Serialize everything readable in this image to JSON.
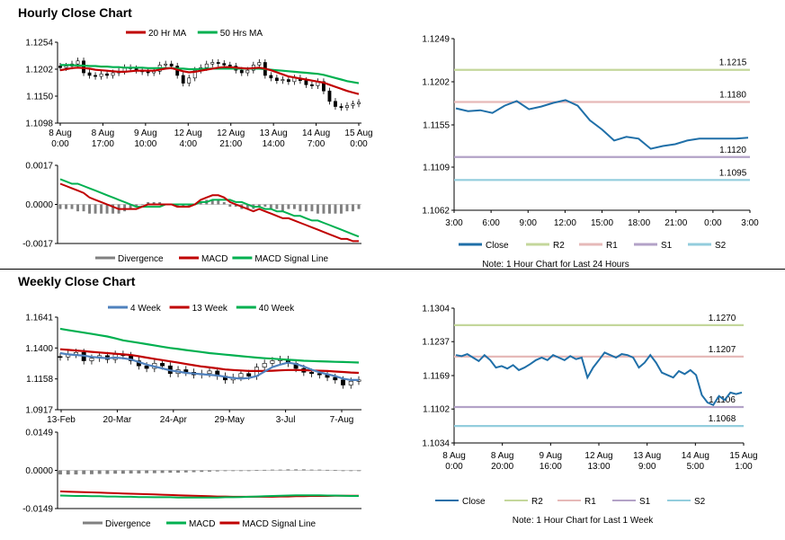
{
  "titles": {
    "hourly": "Hourly Close Chart",
    "weekly": "Weekly Close Chart"
  },
  "chart_data": [
    {
      "id": "hourly_price",
      "type": "candlestick",
      "legend": [
        {
          "label": "20 Hr MA",
          "color": "#c00000"
        },
        {
          "label": "50 Hrs MA",
          "color": "#00b050"
        }
      ],
      "y_ticks": [
        "1.1254",
        "1.1202",
        "1.1150",
        "1.1098"
      ],
      "ylim": [
        1.1098,
        1.1254
      ],
      "x_ticks": [
        [
          "8 Aug",
          "0:00"
        ],
        [
          "8 Aug",
          "17:00"
        ],
        [
          "9 Aug",
          "10:00"
        ],
        [
          "12 Aug",
          "4:00"
        ],
        [
          "12 Aug",
          "21:00"
        ],
        [
          "13 Aug",
          "14:00"
        ],
        [
          "14 Aug",
          "7:00"
        ],
        [
          "15 Aug",
          "0:00"
        ]
      ],
      "close": [
        1.1205,
        1.1208,
        1.1212,
        1.1218,
        1.1195,
        1.119,
        1.1188,
        1.1193,
        1.119,
        1.1195,
        1.1198,
        1.1205,
        1.1203,
        1.12,
        1.1197,
        1.1195,
        1.1198,
        1.121,
        1.1212,
        1.1208,
        1.119,
        1.1175,
        1.1185,
        1.12,
        1.1205,
        1.1212,
        1.1215,
        1.1213,
        1.121,
        1.1208,
        1.12,
        1.1195,
        1.12,
        1.121,
        1.1215,
        1.119,
        1.1185,
        1.118,
        1.1182,
        1.1178,
        1.1185,
        1.118,
        1.1172,
        1.117,
        1.1178,
        1.116,
        1.114,
        1.113,
        1.1128,
        1.1132,
        1.1135,
        1.1138
      ],
      "ma20": [
        1.12,
        1.1202,
        1.1204,
        1.1205,
        1.1204,
        1.1203,
        1.1201,
        1.12,
        1.1199,
        1.1198,
        1.1197,
        1.1197,
        1.1198,
        1.1199,
        1.1199,
        1.1199,
        1.1199,
        1.1201,
        1.1203,
        1.1204,
        1.1201,
        1.1198,
        1.1196,
        1.1197,
        1.1199,
        1.1201,
        1.1203,
        1.1205,
        1.1206,
        1.1206,
        1.1205,
        1.1204,
        1.1203,
        1.1204,
        1.1205,
        1.1203,
        1.12,
        1.1196,
        1.1192,
        1.1188,
        1.1186,
        1.1184,
        1.1182,
        1.118,
        1.1178,
        1.1176,
        1.1172,
        1.1168,
        1.1164,
        1.116,
        1.1157,
        1.1154
      ],
      "ma50": [
        1.121,
        1.121,
        1.121,
        1.1209,
        1.1209,
        1.1208,
        1.1208,
        1.1207,
        1.1207,
        1.1206,
        1.1206,
        1.1205,
        1.1205,
        1.1205,
        1.1205,
        1.1204,
        1.1204,
        1.1204,
        1.1204,
        1.1204,
        1.1203,
        1.1203,
        1.1202,
        1.1202,
        1.1202,
        1.1203,
        1.1203,
        1.1203,
        1.1203,
        1.1203,
        1.1203,
        1.1203,
        1.1203,
        1.1203,
        1.1203,
        1.1202,
        1.1201,
        1.12,
        1.1199,
        1.1198,
        1.1197,
        1.1196,
        1.1195,
        1.1194,
        1.1193,
        1.1191,
        1.1188,
        1.1185,
        1.1182,
        1.1179,
        1.1177,
        1.1175
      ]
    },
    {
      "id": "hourly_macd",
      "type": "macd",
      "y_ticks": [
        "0.0017",
        "0.0000",
        "-0.0017"
      ],
      "ylim": [
        -0.0017,
        0.0017
      ],
      "legend": [
        {
          "label": "Divergence",
          "color": "#808080"
        },
        {
          "label": "MACD",
          "color": "#c00000"
        },
        {
          "label": "MACD Signal Line",
          "color": "#00b050"
        }
      ],
      "macd": [
        0.0009,
        0.0008,
        0.0007,
        0.0006,
        0.0005,
        0.0003,
        0.0002,
        0.0001,
        0.0,
        -0.0001,
        -0.0002,
        -0.0002,
        -0.0002,
        -0.0002,
        -0.0001,
        0.0,
        0.0,
        0.0,
        0.0,
        0.0,
        -0.0001,
        -0.0001,
        -0.0001,
        0.0,
        0.0002,
        0.0003,
        0.0004,
        0.0004,
        0.0003,
        0.0001,
        0.0,
        -0.0001,
        -0.0002,
        -0.0003,
        -0.0002,
        -0.0003,
        -0.0004,
        -0.0005,
        -0.0006,
        -0.0006,
        -0.0007,
        -0.0008,
        -0.0009,
        -0.001,
        -0.0011,
        -0.0012,
        -0.0013,
        -0.0014,
        -0.0015,
        -0.0015,
        -0.0016,
        -0.0016
      ],
      "signal": [
        0.0011,
        0.001,
        0.0009,
        0.0009,
        0.0008,
        0.0007,
        0.0006,
        0.0005,
        0.0004,
        0.0003,
        0.0002,
        0.0001,
        0.0,
        -0.0001,
        -0.0001,
        -0.0001,
        -0.0001,
        -0.0001,
        0.0,
        0.0,
        0.0,
        0.0,
        0.0,
        0.0,
        0.0001,
        0.0001,
        0.0002,
        0.0002,
        0.0002,
        0.0002,
        0.0001,
        0.0001,
        0.0,
        -0.0001,
        -0.0001,
        -0.0002,
        -0.0002,
        -0.0003,
        -0.0003,
        -0.0004,
        -0.0005,
        -0.0005,
        -0.0006,
        -0.0007,
        -0.0007,
        -0.0008,
        -0.0009,
        -0.001,
        -0.0011,
        -0.0012,
        -0.0013,
        -0.0014
      ]
    },
    {
      "id": "hourly_24h",
      "type": "line",
      "y_ticks": [
        "1.1249",
        "1.1202",
        "1.1155",
        "1.1109",
        "1.1062"
      ],
      "ylim": [
        1.1062,
        1.1249
      ],
      "x_ticks": [
        "3:00",
        "6:00",
        "9:00",
        "12:00",
        "15:00",
        "18:00",
        "21:00",
        "0:00",
        "3:00"
      ],
      "close": [
        1.1173,
        1.117,
        1.1171,
        1.1168,
        1.1176,
        1.1181,
        1.1172,
        1.1175,
        1.1179,
        1.1182,
        1.1176,
        1.116,
        1.115,
        1.1138,
        1.1142,
        1.114,
        1.1129,
        1.1132,
        1.1134,
        1.1138,
        1.114,
        1.114,
        1.114,
        1.114,
        1.1141
      ],
      "levels": [
        {
          "name": "R2",
          "value": 1.1215,
          "label": "1.1215",
          "color": "#c4d79b"
        },
        {
          "name": "R1",
          "value": 1.118,
          "label": "1.1180",
          "color": "#e6b9b8"
        },
        {
          "name": "S1",
          "value": 1.112,
          "label": "1.1120",
          "color": "#b3a2c7"
        },
        {
          "name": "S2",
          "value": 1.1095,
          "label": "1.1095",
          "color": "#93cddd"
        }
      ],
      "legend": [
        {
          "label": "Close",
          "color": "#1f6fa8"
        },
        {
          "label": "R2",
          "color": "#c4d79b"
        },
        {
          "label": "R1",
          "color": "#e6b9b8"
        },
        {
          "label": "S1",
          "color": "#b3a2c7"
        },
        {
          "label": "S2",
          "color": "#93cddd"
        }
      ],
      "note": "Note: 1 Hour Chart for Last 24 Hours"
    },
    {
      "id": "weekly_price",
      "type": "candlestick",
      "legend": [
        {
          "label": "4 Week",
          "color": "#4f81bd"
        },
        {
          "label": "13 Week",
          "color": "#c00000"
        },
        {
          "label": "40 Week",
          "color": "#00b050"
        }
      ],
      "y_ticks": [
        "1.1641",
        "1.1400",
        "1.1158",
        "1.0917"
      ],
      "ylim": [
        1.0917,
        1.1641
      ],
      "x_ticks": [
        "13-Feb",
        "20-Mar",
        "24-Apr",
        "29-May",
        "3-Jul",
        "7-Aug"
      ],
      "close": [
        1.133,
        1.135,
        1.1365,
        1.13,
        1.132,
        1.134,
        1.131,
        1.135,
        1.134,
        1.13,
        1.126,
        1.124,
        1.128,
        1.126,
        1.12,
        1.123,
        1.121,
        1.119,
        1.12,
        1.122,
        1.118,
        1.115,
        1.117,
        1.12,
        1.118,
        1.125,
        1.128,
        1.13,
        1.131,
        1.128,
        1.124,
        1.121,
        1.12,
        1.119,
        1.117,
        1.115,
        1.111,
        1.114,
        1.115
      ],
      "ma4": [
        1.136,
        1.135,
        1.1345,
        1.134,
        1.133,
        1.1325,
        1.132,
        1.1325,
        1.132,
        1.131,
        1.129,
        1.127,
        1.1255,
        1.124,
        1.1225,
        1.1215,
        1.1205,
        1.12,
        1.1195,
        1.119,
        1.1185,
        1.1175,
        1.1165,
        1.116,
        1.1165,
        1.118,
        1.1215,
        1.125,
        1.127,
        1.1285,
        1.1275,
        1.1255,
        1.123,
        1.121,
        1.1195,
        1.118,
        1.116,
        1.115,
        1.115
      ],
      "ma13": [
        1.139,
        1.1385,
        1.138,
        1.1375,
        1.137,
        1.1365,
        1.136,
        1.1355,
        1.135,
        1.1345,
        1.1335,
        1.1325,
        1.1315,
        1.1305,
        1.1295,
        1.1285,
        1.1275,
        1.1265,
        1.1255,
        1.1248,
        1.124,
        1.1232,
        1.1228,
        1.1224,
        1.122,
        1.122,
        1.122,
        1.1222,
        1.1225,
        1.1228,
        1.1228,
        1.1226,
        1.1224,
        1.1222,
        1.122,
        1.1216,
        1.1212,
        1.1208,
        1.1205
      ],
      "ma40": [
        1.155,
        1.154,
        1.153,
        1.152,
        1.151,
        1.15,
        1.149,
        1.1475,
        1.146,
        1.145,
        1.144,
        1.143,
        1.142,
        1.141,
        1.14,
        1.1392,
        1.1384,
        1.1376,
        1.1368,
        1.136,
        1.1354,
        1.1348,
        1.1342,
        1.1336,
        1.133,
        1.1325,
        1.132,
        1.1316,
        1.1312,
        1.1308,
        1.1304,
        1.13,
        1.1298,
        1.1296,
        1.1294,
        1.1292,
        1.129,
        1.1288,
        1.1286
      ]
    },
    {
      "id": "weekly_macd",
      "type": "macd",
      "y_ticks": [
        "0.0149",
        "0.0000",
        "-0.0149"
      ],
      "ylim": [
        -0.0149,
        0.0149
      ],
      "legend": [
        {
          "label": "Divergence",
          "color": "#808080"
        },
        {
          "label": "MACD",
          "color": "#00b050"
        },
        {
          "label": "MACD Signal Line",
          "color": "#c00000"
        }
      ],
      "macd": [
        -0.0098,
        -0.0099,
        -0.01,
        -0.01,
        -0.0101,
        -0.0101,
        -0.0102,
        -0.0102,
        -0.0103,
        -0.0103,
        -0.0104,
        -0.0104,
        -0.0105,
        -0.0105,
        -0.0105,
        -0.0106,
        -0.0106,
        -0.0106,
        -0.0106,
        -0.0106,
        -0.0106,
        -0.0105,
        -0.0105,
        -0.0104,
        -0.0103,
        -0.0102,
        -0.0101,
        -0.01,
        -0.0099,
        -0.0098,
        -0.0097,
        -0.0097,
        -0.0097,
        -0.0097,
        -0.0098,
        -0.0098,
        -0.0099,
        -0.01,
        -0.01
      ],
      "signal": [
        -0.0082,
        -0.0083,
        -0.0084,
        -0.0085,
        -0.0086,
        -0.0087,
        -0.0088,
        -0.0089,
        -0.009,
        -0.0091,
        -0.0092,
        -0.0093,
        -0.0094,
        -0.0095,
        -0.0096,
        -0.0097,
        -0.0098,
        -0.0099,
        -0.01,
        -0.0101,
        -0.0102,
        -0.0102,
        -0.0103,
        -0.0103,
        -0.0103,
        -0.0103,
        -0.0103,
        -0.0103,
        -0.0102,
        -0.0102,
        -0.0101,
        -0.0101,
        -0.01,
        -0.01,
        -0.01,
        -0.0099,
        -0.0099,
        -0.0099,
        -0.0099
      ]
    },
    {
      "id": "weekly_1w",
      "type": "line",
      "y_ticks": [
        "1.1304",
        "1.1237",
        "1.1169",
        "1.1102",
        "1.1034"
      ],
      "ylim": [
        1.1034,
        1.1304
      ],
      "x_ticks": [
        [
          "8 Aug",
          "0:00"
        ],
        [
          "8 Aug",
          "20:00"
        ],
        [
          "9 Aug",
          "16:00"
        ],
        [
          "12 Aug",
          "13:00"
        ],
        [
          "13 Aug",
          "9:00"
        ],
        [
          "14 Aug",
          "5:00"
        ],
        [
          "15 Aug",
          "1:00"
        ]
      ],
      "close": [
        1.121,
        1.1208,
        1.1212,
        1.1205,
        1.1198,
        1.121,
        1.12,
        1.1185,
        1.1188,
        1.1183,
        1.119,
        1.118,
        1.1185,
        1.1192,
        1.12,
        1.1205,
        1.12,
        1.121,
        1.1205,
        1.12,
        1.1208,
        1.1202,
        1.1205,
        1.1165,
        1.1185,
        1.12,
        1.1215,
        1.121,
        1.1205,
        1.1212,
        1.121,
        1.1205,
        1.1185,
        1.1195,
        1.121,
        1.1195,
        1.1175,
        1.117,
        1.1165,
        1.1178,
        1.1172,
        1.118,
        1.117,
        1.113,
        1.1115,
        1.111,
        1.1128,
        1.112,
        1.1135,
        1.1132,
        1.1135
      ],
      "levels": [
        {
          "name": "R2",
          "value": 1.127,
          "label": "1.1270",
          "color": "#c4d79b"
        },
        {
          "name": "R1",
          "value": 1.1207,
          "label": "1.1207",
          "color": "#e6b9b8"
        },
        {
          "name": "S1",
          "value": 1.1106,
          "label": "1.1106",
          "color": "#b3a2c7"
        },
        {
          "name": "S2",
          "value": 1.1068,
          "label": "1.1068",
          "color": "#93cddd"
        }
      ],
      "legend": [
        {
          "label": "Close",
          "color": "#1f6fa8"
        },
        {
          "label": "R2",
          "color": "#c4d79b"
        },
        {
          "label": "R1",
          "color": "#e6b9b8"
        },
        {
          "label": "S1",
          "color": "#b3a2c7"
        },
        {
          "label": "S2",
          "color": "#93cddd"
        }
      ],
      "note": "Note: 1 Hour Chart for Last 1 Week"
    }
  ]
}
